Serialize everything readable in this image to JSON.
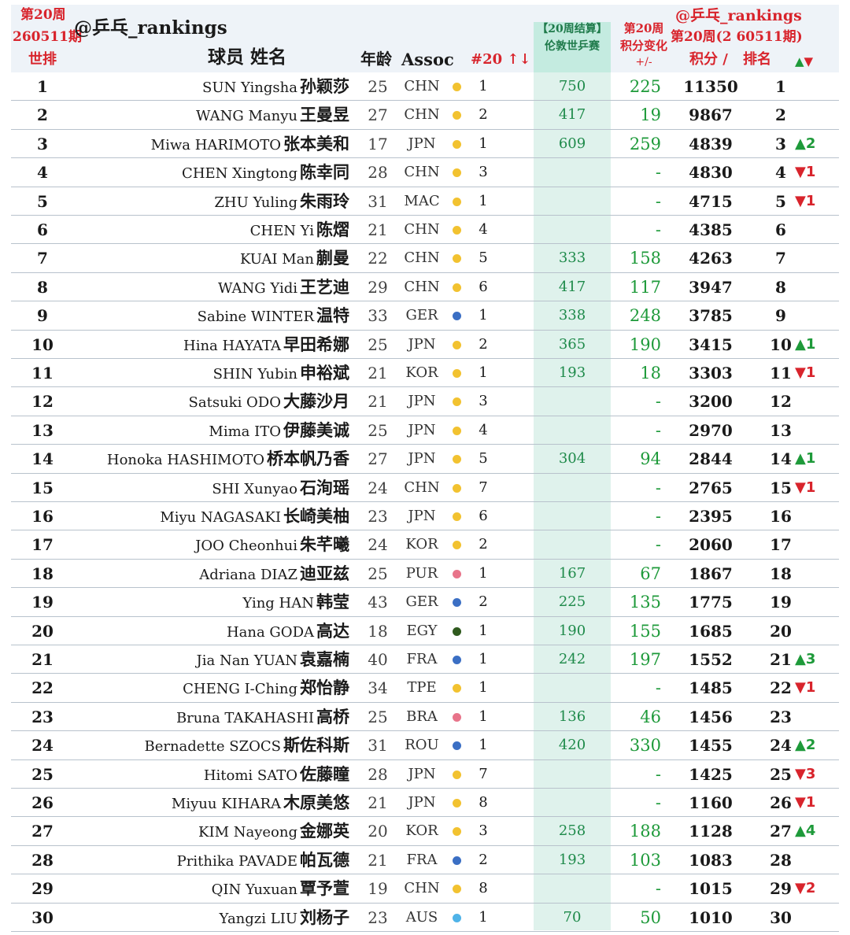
{
  "colors": {
    "red": "#d8242c",
    "green": "#1e9a3a",
    "dot_asia": "#f2c230",
    "dot_europe": "#3b6fc4",
    "dot_americas": "#e8748a",
    "dot_africa": "#2f5a1e",
    "dot_oceania": "#4fb3e8"
  },
  "header": {
    "week_label": "第20周",
    "period_label": "260511期",
    "world_rank_label": "世排",
    "handle": "@乒乓_rankings",
    "player_label": "球员 姓名",
    "age_label": "年龄",
    "assoc_label": "Assoc",
    "assoc_rank_label": "#20 ↑↓",
    "event_line1": "【20周结算】",
    "event_line2": "伦敦世乒赛",
    "change_line1": "第20周",
    "change_line2": "积分变化",
    "change_line3": "+/-",
    "right_handle": "@乒乓_rankings",
    "right_period": "第20周(2 60511期)",
    "points_label": "积分 /",
    "rank_label": "排名",
    "arrows_label": "▲▼"
  },
  "rows": [
    {
      "rank": "1",
      "name_en": "SUN Yingsha",
      "name_zh": "孙颖莎",
      "age": "25",
      "assoc": "CHN",
      "dot": "dot_asia",
      "assoc_rank": "1",
      "event_pts": "750",
      "change": "225",
      "points": "11350",
      "pos": "1",
      "move": "",
      "move_dir": ""
    },
    {
      "rank": "2",
      "name_en": "WANG Manyu",
      "name_zh": "王曼昱",
      "age": "27",
      "assoc": "CHN",
      "dot": "dot_asia",
      "assoc_rank": "2",
      "event_pts": "417",
      "change": "19",
      "points": "9867",
      "pos": "2",
      "move": "",
      "move_dir": ""
    },
    {
      "rank": "3",
      "name_en": "Miwa HARIMOTO",
      "name_zh": "张本美和",
      "age": "17",
      "assoc": "JPN",
      "dot": "dot_asia",
      "assoc_rank": "1",
      "event_pts": "609",
      "change": "259",
      "points": "4839",
      "pos": "3",
      "move": "▲2",
      "move_dir": "up"
    },
    {
      "rank": "4",
      "name_en": "CHEN Xingtong",
      "name_zh": "陈幸同",
      "age": "28",
      "assoc": "CHN",
      "dot": "dot_asia",
      "assoc_rank": "3",
      "event_pts": "",
      "change": "-",
      "points": "4830",
      "pos": "4",
      "move": "▼1",
      "move_dir": "down"
    },
    {
      "rank": "5",
      "name_en": "ZHU Yuling",
      "name_zh": "朱雨玲",
      "age": "31",
      "assoc": "MAC",
      "dot": "dot_asia",
      "assoc_rank": "1",
      "event_pts": "",
      "change": "-",
      "points": "4715",
      "pos": "5",
      "move": "▼1",
      "move_dir": "down"
    },
    {
      "rank": "6",
      "name_en": "CHEN Yi",
      "name_zh": "陈熠",
      "age": "21",
      "assoc": "CHN",
      "dot": "dot_asia",
      "assoc_rank": "4",
      "event_pts": "",
      "change": "-",
      "points": "4385",
      "pos": "6",
      "move": "",
      "move_dir": ""
    },
    {
      "rank": "7",
      "name_en": "KUAI Man",
      "name_zh": "蒯曼",
      "age": "22",
      "assoc": "CHN",
      "dot": "dot_asia",
      "assoc_rank": "5",
      "event_pts": "333",
      "change": "158",
      "points": "4263",
      "pos": "7",
      "move": "",
      "move_dir": ""
    },
    {
      "rank": "8",
      "name_en": "WANG Yidi",
      "name_zh": "王艺迪",
      "age": "29",
      "assoc": "CHN",
      "dot": "dot_asia",
      "assoc_rank": "6",
      "event_pts": "417",
      "change": "117",
      "points": "3947",
      "pos": "8",
      "move": "",
      "move_dir": ""
    },
    {
      "rank": "9",
      "name_en": "Sabine WINTER",
      "name_zh": "温特",
      "age": "33",
      "assoc": "GER",
      "dot": "dot_europe",
      "assoc_rank": "1",
      "event_pts": "338",
      "change": "248",
      "points": "3785",
      "pos": "9",
      "move": "",
      "move_dir": ""
    },
    {
      "rank": "10",
      "name_en": "Hina HAYATA",
      "name_zh": "早田希娜",
      "age": "25",
      "assoc": "JPN",
      "dot": "dot_asia",
      "assoc_rank": "2",
      "event_pts": "365",
      "change": "190",
      "points": "3415",
      "pos": "10",
      "move": "▲1",
      "move_dir": "up"
    },
    {
      "rank": "11",
      "name_en": "SHIN Yubin",
      "name_zh": "申裕斌",
      "age": "21",
      "assoc": "KOR",
      "dot": "dot_asia",
      "assoc_rank": "1",
      "event_pts": "193",
      "change": "18",
      "points": "3303",
      "pos": "11",
      "move": "▼1",
      "move_dir": "down"
    },
    {
      "rank": "12",
      "name_en": "Satsuki ODO",
      "name_zh": "大藤沙月",
      "age": "21",
      "assoc": "JPN",
      "dot": "dot_asia",
      "assoc_rank": "3",
      "event_pts": "",
      "change": "-",
      "points": "3200",
      "pos": "12",
      "move": "",
      "move_dir": ""
    },
    {
      "rank": "13",
      "name_en": "Mima ITO",
      "name_zh": "伊藤美诚",
      "age": "25",
      "assoc": "JPN",
      "dot": "dot_asia",
      "assoc_rank": "4",
      "event_pts": "",
      "change": "-",
      "points": "2970",
      "pos": "13",
      "move": "",
      "move_dir": ""
    },
    {
      "rank": "14",
      "name_en": "Honoka HASHIMOTO",
      "name_zh": "桥本帆乃香",
      "age": "27",
      "assoc": "JPN",
      "dot": "dot_asia",
      "assoc_rank": "5",
      "event_pts": "304",
      "change": "94",
      "points": "2844",
      "pos": "14",
      "move": "▲1",
      "move_dir": "up"
    },
    {
      "rank": "15",
      "name_en": "SHI Xunyao",
      "name_zh": "石洵瑶",
      "age": "24",
      "assoc": "CHN",
      "dot": "dot_asia",
      "assoc_rank": "7",
      "event_pts": "",
      "change": "-",
      "points": "2765",
      "pos": "15",
      "move": "▼1",
      "move_dir": "down"
    },
    {
      "rank": "16",
      "name_en": "Miyu NAGASAKI",
      "name_zh": "长崎美柚",
      "age": "23",
      "assoc": "JPN",
      "dot": "dot_asia",
      "assoc_rank": "6",
      "event_pts": "",
      "change": "-",
      "points": "2395",
      "pos": "16",
      "move": "",
      "move_dir": ""
    },
    {
      "rank": "17",
      "name_en": "JOO Cheonhui",
      "name_zh": "朱芊曦",
      "age": "24",
      "assoc": "KOR",
      "dot": "dot_asia",
      "assoc_rank": "2",
      "event_pts": "",
      "change": "-",
      "points": "2060",
      "pos": "17",
      "move": "",
      "move_dir": ""
    },
    {
      "rank": "18",
      "name_en": "Adriana DIAZ",
      "name_zh": "迪亚兹",
      "age": "25",
      "assoc": "PUR",
      "dot": "dot_americas",
      "assoc_rank": "1",
      "event_pts": "167",
      "change": "67",
      "points": "1867",
      "pos": "18",
      "move": "",
      "move_dir": ""
    },
    {
      "rank": "19",
      "name_en": "Ying HAN",
      "name_zh": "韩莹",
      "age": "43",
      "assoc": "GER",
      "dot": "dot_europe",
      "assoc_rank": "2",
      "event_pts": "225",
      "change": "135",
      "points": "1775",
      "pos": "19",
      "move": "",
      "move_dir": ""
    },
    {
      "rank": "20",
      "name_en": "Hana GODA",
      "name_zh": "高达",
      "age": "18",
      "assoc": "EGY",
      "dot": "dot_africa",
      "assoc_rank": "1",
      "event_pts": "190",
      "change": "155",
      "points": "1685",
      "pos": "20",
      "move": "",
      "move_dir": ""
    },
    {
      "rank": "21",
      "name_en": "Jia Nan YUAN",
      "name_zh": "袁嘉楠",
      "age": "40",
      "assoc": "FRA",
      "dot": "dot_europe",
      "assoc_rank": "1",
      "event_pts": "242",
      "change": "197",
      "points": "1552",
      "pos": "21",
      "move": "▲3",
      "move_dir": "up"
    },
    {
      "rank": "22",
      "name_en": "CHENG I-Ching",
      "name_zh": "郑怡静",
      "age": "34",
      "assoc": "TPE",
      "dot": "dot_asia",
      "assoc_rank": "1",
      "event_pts": "",
      "change": "-",
      "points": "1485",
      "pos": "22",
      "move": "▼1",
      "move_dir": "down"
    },
    {
      "rank": "23",
      "name_en": "Bruna TAKAHASHI",
      "name_zh": "高桥",
      "age": "25",
      "assoc": "BRA",
      "dot": "dot_americas",
      "assoc_rank": "1",
      "event_pts": "136",
      "change": "46",
      "points": "1456",
      "pos": "23",
      "move": "",
      "move_dir": ""
    },
    {
      "rank": "24",
      "name_en": "Bernadette SZOCS",
      "name_zh": "斯佐科斯",
      "age": "31",
      "assoc": "ROU",
      "dot": "dot_europe",
      "assoc_rank": "1",
      "event_pts": "420",
      "change": "330",
      "points": "1455",
      "pos": "24",
      "move": "▲2",
      "move_dir": "up"
    },
    {
      "rank": "25",
      "name_en": "Hitomi SATO",
      "name_zh": "佐藤瞳",
      "age": "28",
      "assoc": "JPN",
      "dot": "dot_asia",
      "assoc_rank": "7",
      "event_pts": "",
      "change": "-",
      "points": "1425",
      "pos": "25",
      "move": "▼3",
      "move_dir": "down"
    },
    {
      "rank": "26",
      "name_en": "Miyuu KIHARA",
      "name_zh": "木原美悠",
      "age": "21",
      "assoc": "JPN",
      "dot": "dot_asia",
      "assoc_rank": "8",
      "event_pts": "",
      "change": "-",
      "points": "1160",
      "pos": "26",
      "move": "▼1",
      "move_dir": "down"
    },
    {
      "rank": "27",
      "name_en": "KIM Nayeong",
      "name_zh": "金娜英",
      "age": "20",
      "assoc": "KOR",
      "dot": "dot_asia",
      "assoc_rank": "3",
      "event_pts": "258",
      "change": "188",
      "points": "1128",
      "pos": "27",
      "move": "▲4",
      "move_dir": "up"
    },
    {
      "rank": "28",
      "name_en": "Prithika PAVADE",
      "name_zh": "帕瓦德",
      "age": "21",
      "assoc": "FRA",
      "dot": "dot_europe",
      "assoc_rank": "2",
      "event_pts": "193",
      "change": "103",
      "points": "1083",
      "pos": "28",
      "move": "",
      "move_dir": ""
    },
    {
      "rank": "29",
      "name_en": "QIN Yuxuan",
      "name_zh": "覃予萱",
      "age": "19",
      "assoc": "CHN",
      "dot": "dot_asia",
      "assoc_rank": "8",
      "event_pts": "",
      "change": "-",
      "points": "1015",
      "pos": "29",
      "move": "▼2",
      "move_dir": "down"
    },
    {
      "rank": "30",
      "name_en": "Yangzi LIU",
      "name_zh": "刘杨子",
      "age": "23",
      "assoc": "AUS",
      "dot": "dot_oceania",
      "assoc_rank": "1",
      "event_pts": "70",
      "change": "50",
      "points": "1010",
      "pos": "30",
      "move": "",
      "move_dir": ""
    }
  ]
}
